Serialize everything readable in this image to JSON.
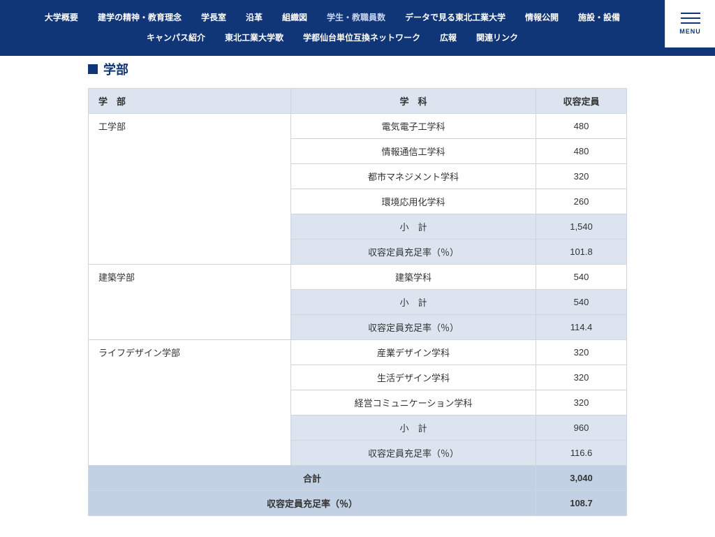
{
  "nav": {
    "row1": [
      {
        "label": "大学概要",
        "active": false
      },
      {
        "label": "建学の精神・教育理念",
        "active": false
      },
      {
        "label": "学長室",
        "active": false
      },
      {
        "label": "沿革",
        "active": false
      },
      {
        "label": "組織図",
        "active": false
      },
      {
        "label": "学生・教職員数",
        "active": true
      },
      {
        "label": "データで見る東北工業大学",
        "active": false
      },
      {
        "label": "情報公開",
        "active": false
      },
      {
        "label": "施設・設備",
        "active": false
      }
    ],
    "row2": [
      {
        "label": "キャンパス紹介",
        "active": false
      },
      {
        "label": "東北工業大学歌",
        "active": false
      },
      {
        "label": "学都仙台単位互換ネットワーク",
        "active": false
      },
      {
        "label": "広報",
        "active": false
      },
      {
        "label": "関連リンク",
        "active": false
      }
    ],
    "menu_label": "MENU"
  },
  "section_title": "学部",
  "table": {
    "headers": {
      "faculty": "学　部",
      "dept": "学　科",
      "capacity": "収容定員"
    },
    "labels": {
      "subtotal": "小　計",
      "fill_rate": "収容定員充足率（％）",
      "total": "合計"
    },
    "faculties": [
      {
        "name": "工学部",
        "depts": [
          {
            "name": "電気電子工学科",
            "cap": "480"
          },
          {
            "name": "情報通信工学科",
            "cap": "480"
          },
          {
            "name": "都市マネジメント学科",
            "cap": "320"
          },
          {
            "name": "環境応用化学科",
            "cap": "260"
          }
        ],
        "subtotal": "1,540",
        "fill_rate": "101.8"
      },
      {
        "name": "建築学部",
        "depts": [
          {
            "name": "建築学科",
            "cap": "540"
          }
        ],
        "subtotal": "540",
        "fill_rate": "114.4"
      },
      {
        "name": "ライフデザイン学部",
        "depts": [
          {
            "name": "産業デザイン学科",
            "cap": "320"
          },
          {
            "name": "生活デザイン学科",
            "cap": "320"
          },
          {
            "name": "経営コミュニケーション学科",
            "cap": "320"
          }
        ],
        "subtotal": "960",
        "fill_rate": "116.6"
      }
    ],
    "grand_total": "3,040",
    "grand_fill_rate": "108.7"
  },
  "colors": {
    "nav_bg": "#113678",
    "nav_text": "#ffffff",
    "nav_active": "#c6d4ec",
    "header_bg": "#dbe4ef",
    "subtotal_bg": "#dbe4ef",
    "total_bg": "#c2d1e4",
    "border": "#cfd5dd",
    "accent": "#113678"
  }
}
